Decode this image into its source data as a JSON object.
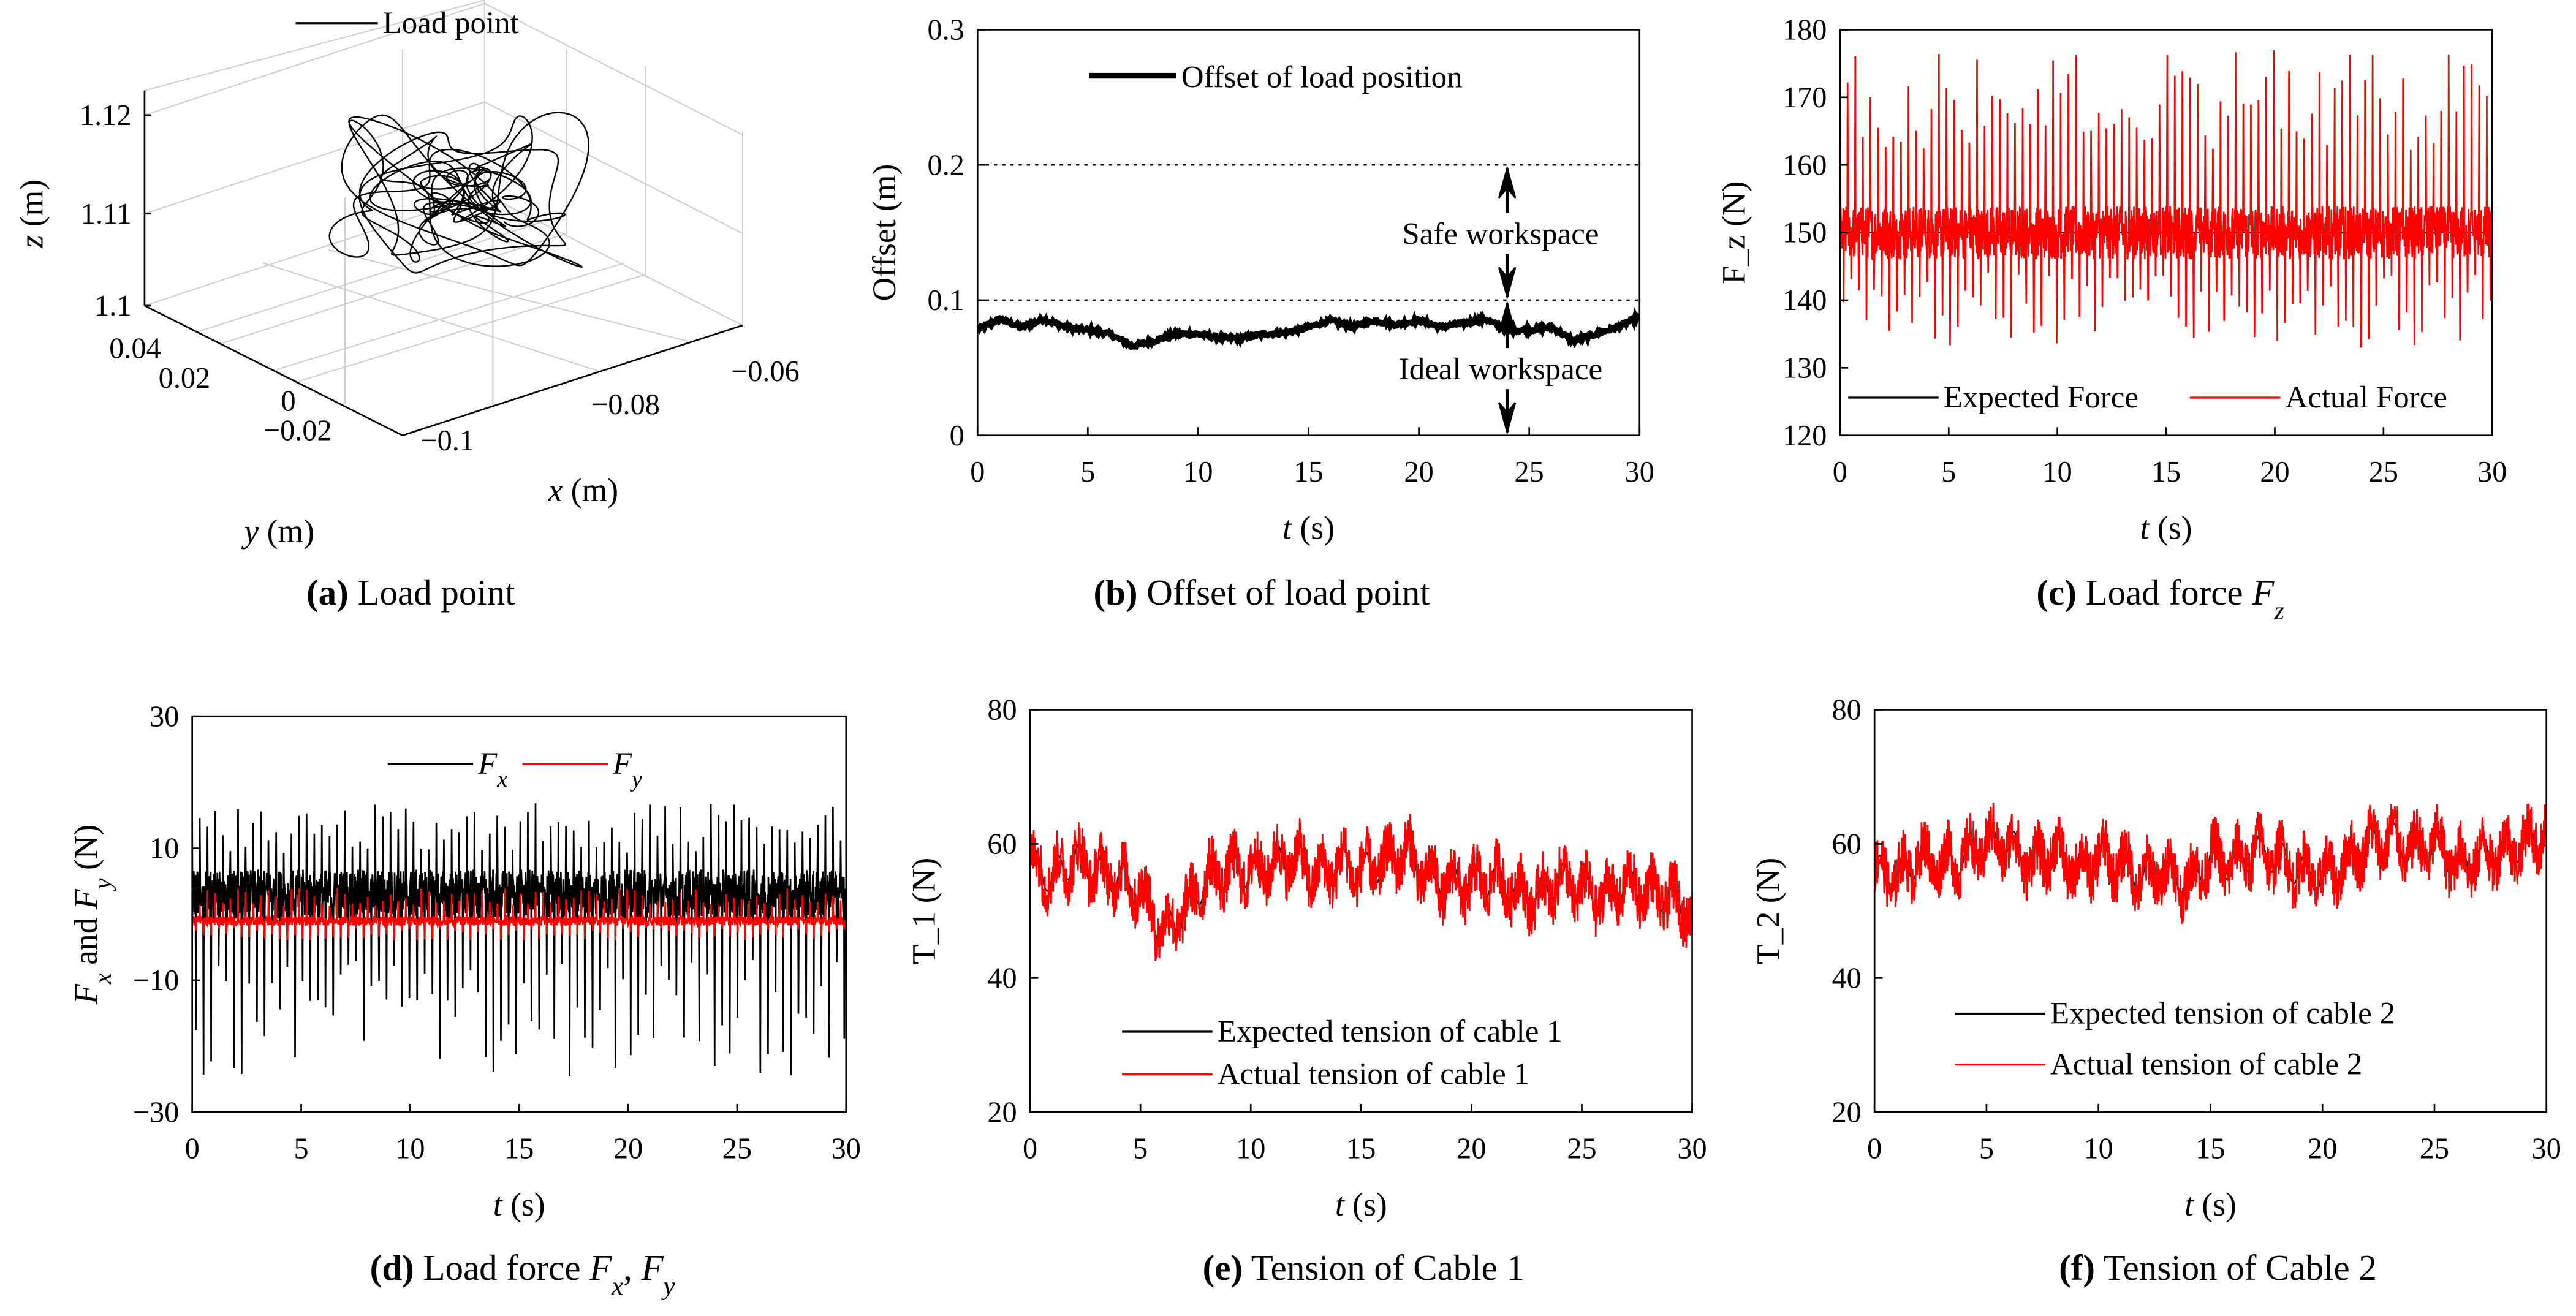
{
  "chart_data": [
    {
      "id": "a",
      "type": "line3d",
      "caption": {
        "letter": "(a)",
        "text": "Load point"
      },
      "legend": [
        "Load point"
      ],
      "xlabel": "x (m)",
      "ylabel": "y (m)",
      "zlabel": "z (m)",
      "xticks": [
        "−0.1",
        "−0.08",
        "−0.06"
      ],
      "yticks": [
        "0.04",
        "0.02",
        "0",
        "−0.02"
      ],
      "zticks": [
        "1.12",
        "1.11",
        "1.1"
      ],
      "xlim": [
        -0.1,
        -0.05
      ],
      "ylim": [
        -0.03,
        0.05
      ],
      "zlim": [
        1.1,
        1.125
      ],
      "center": {
        "x": -0.08,
        "y": 0.01,
        "z": 1.112
      }
    },
    {
      "id": "b",
      "type": "line",
      "caption": {
        "letter": "(b)",
        "text": "Offset of load point"
      },
      "xlabel": "t (s)",
      "ylabel": "Offset (m)",
      "xlim": [
        0,
        30
      ],
      "ylim": [
        0,
        0.3
      ],
      "xticks": [
        "0",
        "5",
        "10",
        "15",
        "20",
        "25",
        "30"
      ],
      "yticks": [
        "0",
        "0.1",
        "0.2",
        "0.3"
      ],
      "legend": [
        "Offset of load position"
      ],
      "reference_lines": [
        0.1,
        0.2
      ],
      "annotations": [
        {
          "text": "Safe workspace",
          "range": [
            0.1,
            0.2
          ]
        },
        {
          "text": "Ideal workspace",
          "range": [
            0,
            0.1
          ]
        }
      ],
      "annotation_x": 24,
      "series": [
        {
          "name": "Offset of load position",
          "color": "#000000",
          "x": [
            0,
            1,
            2,
            3,
            4,
            5,
            6,
            7,
            8,
            9,
            10,
            11,
            12,
            13,
            14,
            15,
            16,
            17,
            18,
            19,
            20,
            21,
            22,
            23,
            24,
            25,
            26,
            27,
            28,
            29,
            30
          ],
          "y": [
            0.078,
            0.086,
            0.08,
            0.086,
            0.08,
            0.078,
            0.075,
            0.066,
            0.07,
            0.075,
            0.075,
            0.072,
            0.072,
            0.075,
            0.076,
            0.08,
            0.085,
            0.08,
            0.085,
            0.082,
            0.085,
            0.08,
            0.083,
            0.086,
            0.078,
            0.078,
            0.08,
            0.07,
            0.075,
            0.08,
            0.088
          ]
        }
      ]
    },
    {
      "id": "c",
      "type": "line",
      "caption": {
        "letter": "(c)",
        "text": "Load force F_z"
      },
      "xlabel": "t (s)",
      "ylabel": "F_z (N)",
      "xlim": [
        0,
        30
      ],
      "ylim": [
        120,
        180
      ],
      "xticks": [
        "0",
        "5",
        "10",
        "15",
        "20",
        "25",
        "30"
      ],
      "yticks": [
        "120",
        "130",
        "140",
        "150",
        "160",
        "170",
        "180"
      ],
      "legend": [
        "Expected Force",
        "Actual Force"
      ],
      "series": [
        {
          "name": "Expected Force",
          "color": "#000000",
          "constant": 150
        },
        {
          "name": "Actual Force",
          "color": "#ff0000",
          "mean": 150,
          "min": 133,
          "max": 177
        }
      ]
    },
    {
      "id": "d",
      "type": "line",
      "caption": {
        "letter": "(d)",
        "text": "Load force F_x, F_y"
      },
      "xlabel": "t (s)",
      "ylabel": "F_x and F_y (N)",
      "xlim": [
        0,
        30
      ],
      "ylim": [
        -30,
        30
      ],
      "xticks": [
        "0",
        "5",
        "10",
        "15",
        "20",
        "25",
        "30"
      ],
      "yticks": [
        "−30",
        "−10",
        "10",
        "30"
      ],
      "ytick_values": [
        -30,
        -10,
        10,
        30
      ],
      "legend": [
        "F_x",
        "F_y"
      ],
      "series": [
        {
          "name": "F_x",
          "color": "#000000",
          "mean": 3,
          "min": -25,
          "max": 17
        },
        {
          "name": "F_y",
          "color": "#ff0000",
          "mean": -1,
          "min": -4,
          "max": 4
        }
      ]
    },
    {
      "id": "e",
      "type": "line",
      "caption": {
        "letter": "(e)",
        "text": "Tension of Cable 1"
      },
      "xlabel": "t (s)",
      "ylabel": "T_1 (N)",
      "xlim": [
        0,
        30
      ],
      "ylim": [
        20,
        80
      ],
      "xticks": [
        "0",
        "5",
        "10",
        "15",
        "20",
        "25",
        "30"
      ],
      "yticks": [
        "20",
        "40",
        "60",
        "80"
      ],
      "legend": [
        "Expected tension of cable 1",
        "Actual tension of cable 1"
      ],
      "series": [
        {
          "name": "Expected tension of cable 1",
          "color": "#000000",
          "x": [
            0,
            1,
            2,
            3,
            4,
            5,
            6,
            7,
            8,
            9,
            10,
            11,
            12,
            13,
            14,
            15,
            16,
            17,
            18,
            19,
            20,
            21,
            22,
            23,
            24,
            25,
            26,
            27,
            28,
            29,
            30
          ],
          "y": [
            57,
            55,
            58,
            56,
            55,
            53,
            47,
            50,
            55,
            56,
            56,
            57,
            58,
            55,
            57,
            56,
            57,
            59,
            55,
            54,
            54,
            55,
            53,
            52,
            55,
            53,
            52,
            54,
            53,
            52,
            50
          ]
        },
        {
          "name": "Actual tension of cable 1",
          "color": "#ff0000",
          "noise": 4
        }
      ]
    },
    {
      "id": "f",
      "type": "line",
      "caption": {
        "letter": "(f)",
        "text": "Tension of Cable 2"
      },
      "xlabel": "t (s)",
      "ylabel": "T_2 (N)",
      "xlim": [
        0,
        30
      ],
      "ylim": [
        20,
        80
      ],
      "xticks": [
        "0",
        "5",
        "10",
        "15",
        "20",
        "25",
        "30"
      ],
      "yticks": [
        "20",
        "40",
        "60",
        "80"
      ],
      "legend": [
        "Expected tension of cable 2",
        "Actual tension of cable 2"
      ],
      "series": [
        {
          "name": "Expected tension of cable 2",
          "color": "#000000",
          "x": [
            0,
            1,
            2,
            3,
            4,
            5,
            6,
            7,
            8,
            9,
            10,
            11,
            12,
            13,
            14,
            15,
            16,
            17,
            18,
            19,
            20,
            21,
            22,
            23,
            24,
            25,
            26,
            27,
            28,
            29,
            30
          ],
          "y": [
            56,
            55,
            58,
            57,
            58,
            60,
            60,
            57,
            59,
            56,
            58,
            57,
            55,
            56,
            54,
            58,
            57,
            59,
            58,
            56,
            55,
            57,
            60,
            61,
            59,
            60,
            57,
            58,
            59,
            60,
            62
          ]
        },
        {
          "name": "Actual tension of cable 2",
          "color": "#ff0000",
          "noise": 4
        }
      ]
    }
  ]
}
